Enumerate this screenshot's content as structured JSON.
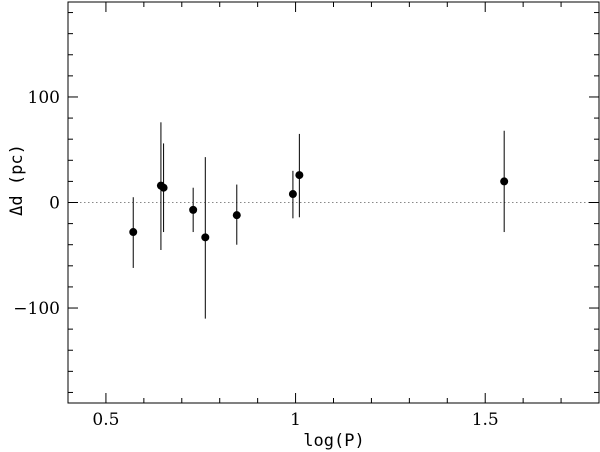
{
  "chart_data": {
    "type": "scatter",
    "title": "",
    "xlabel": "log(P)",
    "ylabel": "Δd (pc)",
    "xlim": [
      0.4,
      1.8
    ],
    "ylim": [
      -190,
      190
    ],
    "x_ticks": [
      0.5,
      1.0,
      1.5
    ],
    "x_tick_labels": [
      "0.5",
      "1",
      "1.5"
    ],
    "y_ticks": [
      -100,
      0,
      100
    ],
    "y_tick_labels": [
      "−100",
      "0",
      "100"
    ],
    "x_minor_step": 0.1,
    "y_minor_step": 20,
    "reference_line": {
      "y": 0,
      "style": "dotted"
    },
    "grid": false,
    "series": [
      {
        "points": [
          {
            "x": 0.572,
            "y": -28,
            "ylow": -62,
            "yhigh": 5
          },
          {
            "x": 0.645,
            "y": 16,
            "ylow": -45,
            "yhigh": 76
          },
          {
            "x": 0.652,
            "y": 14,
            "ylow": -28,
            "yhigh": 56
          },
          {
            "x": 0.73,
            "y": -7,
            "ylow": -28,
            "yhigh": 14
          },
          {
            "x": 0.762,
            "y": -33,
            "ylow": -110,
            "yhigh": 43
          },
          {
            "x": 0.845,
            "y": -12,
            "ylow": -40,
            "yhigh": 17
          },
          {
            "x": 0.993,
            "y": 8,
            "ylow": -15,
            "yhigh": 30
          },
          {
            "x": 1.01,
            "y": 26,
            "ylow": -14,
            "yhigh": 65
          },
          {
            "x": 1.55,
            "y": 20,
            "ylow": -28,
            "yhigh": 68
          }
        ]
      }
    ]
  }
}
